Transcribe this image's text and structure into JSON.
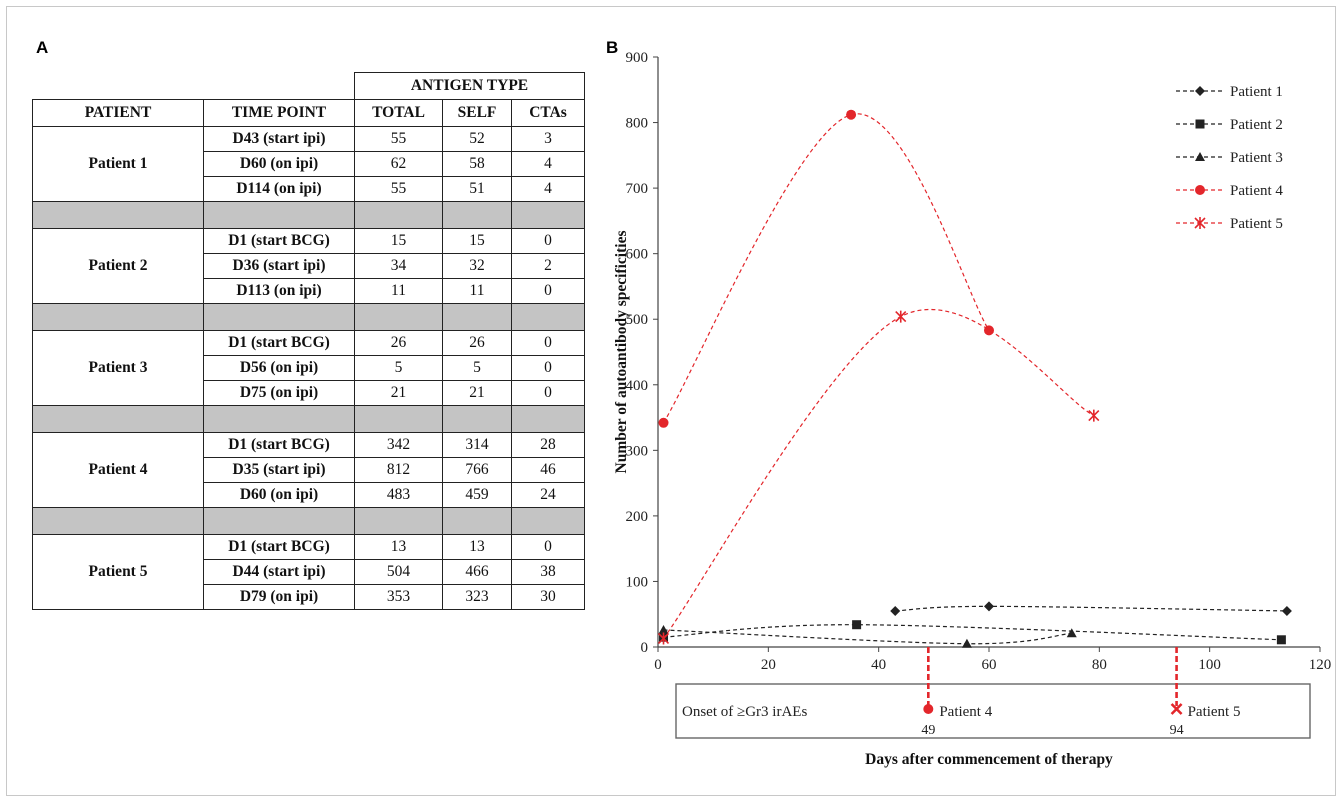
{
  "panels": {
    "a": "A",
    "b": "B"
  },
  "table": {
    "antigen_type_header": "ANTIGEN TYPE",
    "columns": [
      "PATIENT",
      "TIME POINT",
      "TOTAL",
      "SELF",
      "CTAs"
    ],
    "groups": [
      {
        "patient": "Patient 1",
        "rows": [
          [
            "D43 (start ipi)",
            "55",
            "52",
            "3"
          ],
          [
            "D60 (on ipi)",
            "62",
            "58",
            "4"
          ],
          [
            "D114 (on ipi)",
            "55",
            "51",
            "4"
          ]
        ]
      },
      {
        "patient": "Patient 2",
        "rows": [
          [
            "D1 (start BCG)",
            "15",
            "15",
            "0"
          ],
          [
            "D36 (start ipi)",
            "34",
            "32",
            "2"
          ],
          [
            "D113 (on ipi)",
            "11",
            "11",
            "0"
          ]
        ]
      },
      {
        "patient": "Patient 3",
        "rows": [
          [
            "D1 (start BCG)",
            "26",
            "26",
            "0"
          ],
          [
            "D56 (on ipi)",
            "5",
            "5",
            "0"
          ],
          [
            "D75 (on ipi)",
            "21",
            "21",
            "0"
          ]
        ]
      },
      {
        "patient": "Patient 4",
        "rows": [
          [
            "D1 (start BCG)",
            "342",
            "314",
            "28"
          ],
          [
            "D35 (start ipi)",
            "812",
            "766",
            "46"
          ],
          [
            "D60 (on ipi)",
            "483",
            "459",
            "24"
          ]
        ]
      },
      {
        "patient": "Patient 5",
        "rows": [
          [
            "D1 (start BCG)",
            "13",
            "13",
            "0"
          ],
          [
            "D44 (start ipi)",
            "504",
            "466",
            "38"
          ],
          [
            "D79 (on ipi)",
            "353",
            "323",
            "30"
          ]
        ]
      }
    ]
  },
  "chart_data": {
    "type": "line",
    "xlabel": "Days after commencement of therapy",
    "ylabel": "Number of autoantibody specificities",
    "xlim": [
      0,
      120
    ],
    "ylim": [
      0,
      900
    ],
    "xticks": [
      0,
      20,
      40,
      60,
      80,
      100,
      120
    ],
    "yticks": [
      0,
      100,
      200,
      300,
      400,
      500,
      600,
      700,
      800,
      900
    ],
    "legend_position": "top-right",
    "series": [
      {
        "name": "Patient 1",
        "marker": "diamond",
        "color": "#222222",
        "points": [
          [
            43,
            55
          ],
          [
            60,
            62
          ],
          [
            114,
            55
          ]
        ]
      },
      {
        "name": "Patient 2",
        "marker": "square",
        "color": "#222222",
        "points": [
          [
            1,
            15
          ],
          [
            36,
            34
          ],
          [
            113,
            11
          ]
        ]
      },
      {
        "name": "Patient 3",
        "marker": "triangle",
        "color": "#222222",
        "points": [
          [
            1,
            26
          ],
          [
            56,
            5
          ],
          [
            75,
            21
          ]
        ]
      },
      {
        "name": "Patient 4",
        "marker": "circle",
        "color": "#e3262b",
        "points": [
          [
            1,
            342
          ],
          [
            35,
            812
          ],
          [
            60,
            483
          ]
        ]
      },
      {
        "name": "Patient 5",
        "marker": "star",
        "color": "#e3262b",
        "points": [
          [
            1,
            13
          ],
          [
            44,
            504
          ],
          [
            79,
            353
          ]
        ]
      }
    ],
    "irae_box": {
      "label": "Onset of ≥Gr3 irAEs",
      "events": [
        {
          "patient": "Patient 4",
          "day": 49,
          "day_label": "49",
          "marker": "circle",
          "color": "#e3262b"
        },
        {
          "patient": "Patient 5",
          "day": 94,
          "day_label": "94",
          "marker": "x",
          "color": "#e3262b"
        }
      ]
    }
  }
}
